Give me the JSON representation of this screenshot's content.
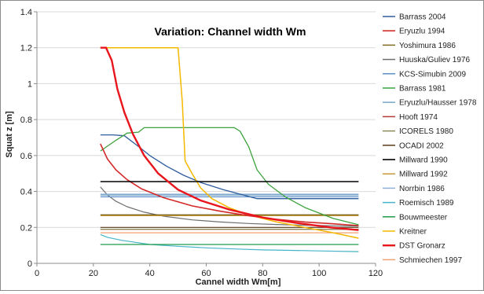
{
  "chart_data": {
    "type": "line",
    "title": "Variation: Channel width Wm",
    "xlabel": "Cannel width Wm[m]",
    "ylabel": "Squat z [m]",
    "xlim": [
      0,
      120
    ],
    "ylim": [
      0,
      1.4
    ],
    "x_ticks": [
      0,
      20,
      40,
      60,
      80,
      100,
      120
    ],
    "y_ticks": [
      0,
      0.2,
      0.4,
      0.6,
      0.8,
      1,
      1.2,
      1.4
    ],
    "x_tick_labels": [
      "0",
      "20",
      "40",
      "60",
      "80",
      "100",
      "120"
    ],
    "y_tick_labels": [
      "0",
      "0.2",
      "0.4",
      "0.6",
      "0.8",
      "1",
      "1.2",
      "1.4"
    ],
    "grid": "horizontal",
    "legend_position": "right",
    "series": [
      {
        "name": "Barrass 2004",
        "color": "#2e5c9e",
        "width": 1.3,
        "points": [
          [
            22.5,
            0.715
          ],
          [
            27,
            0.715
          ],
          [
            31,
            0.71
          ],
          [
            36,
            0.65
          ],
          [
            40,
            0.6
          ],
          [
            46,
            0.54
          ],
          [
            52,
            0.49
          ],
          [
            58,
            0.45
          ],
          [
            66,
            0.41
          ],
          [
            72,
            0.385
          ],
          [
            78,
            0.36
          ],
          [
            90,
            0.36
          ],
          [
            114,
            0.36
          ]
        ]
      },
      {
        "name": "Eryuzlu 1994",
        "color": "#d42a2a",
        "width": 1.6,
        "points": [
          [
            22.5,
            0.665
          ],
          [
            25,
            0.58
          ],
          [
            28,
            0.52
          ],
          [
            32,
            0.465
          ],
          [
            37,
            0.415
          ],
          [
            45,
            0.365
          ],
          [
            55,
            0.32
          ],
          [
            65,
            0.29
          ],
          [
            75,
            0.265
          ],
          [
            85,
            0.245
          ],
          [
            95,
            0.23
          ],
          [
            105,
            0.22
          ],
          [
            114,
            0.21
          ]
        ]
      },
      {
        "name": "Yoshimura 1986",
        "color": "#7f6a1e",
        "width": 1.3,
        "points": [
          [
            22.5,
            0.27
          ],
          [
            114,
            0.27
          ]
        ]
      },
      {
        "name": "Huuska/Guliev 1976",
        "color": "#6e6e6e",
        "width": 1.2,
        "points": [
          [
            22.5,
            0.425
          ],
          [
            25,
            0.38
          ],
          [
            28,
            0.345
          ],
          [
            32,
            0.315
          ],
          [
            38,
            0.285
          ],
          [
            45,
            0.262
          ],
          [
            55,
            0.242
          ],
          [
            65,
            0.23
          ],
          [
            75,
            0.222
          ],
          [
            85,
            0.216
          ],
          [
            95,
            0.212
          ],
          [
            105,
            0.209
          ],
          [
            114,
            0.207
          ]
        ]
      },
      {
        "name": "KCS-Simubin 2009",
        "color": "#5b8fc9",
        "width": 1.2,
        "points": [
          [
            22.5,
            0.37
          ],
          [
            114,
            0.37
          ]
        ]
      },
      {
        "name": "Barrass 1981",
        "color": "#3ea33e",
        "width": 1.3,
        "points": [
          [
            22.5,
            0.625
          ],
          [
            28,
            0.685
          ],
          [
            32,
            0.725
          ],
          [
            36,
            0.73
          ],
          [
            38,
            0.755
          ],
          [
            50,
            0.755
          ],
          [
            60,
            0.755
          ],
          [
            70,
            0.755
          ],
          [
            72,
            0.735
          ],
          [
            75,
            0.65
          ],
          [
            78,
            0.52
          ],
          [
            82,
            0.44
          ],
          [
            88,
            0.37
          ],
          [
            95,
            0.31
          ],
          [
            105,
            0.25
          ],
          [
            114,
            0.215
          ]
        ]
      },
      {
        "name": "Eryuzlu/Hausser 1978",
        "color": "#7aa8c8",
        "width": 1.2,
        "points": [
          [
            22.5,
            0.38
          ],
          [
            114,
            0.38
          ]
        ]
      },
      {
        "name": "Hooft 1974",
        "color": "#b03a3a",
        "width": 1.2,
        "points": [
          [
            22.5,
            0.19
          ],
          [
            114,
            0.19
          ]
        ]
      },
      {
        "name": "ICORELS 1980",
        "color": "#8a8a5a",
        "width": 1.2,
        "points": [
          [
            22.5,
            0.19
          ],
          [
            114,
            0.19
          ]
        ]
      },
      {
        "name": "OCADI 2002",
        "color": "#5a3a1a",
        "width": 1.2,
        "points": [
          [
            22.5,
            0.2
          ],
          [
            114,
            0.2
          ]
        ]
      },
      {
        "name": "Millward 1990",
        "color": "#000000",
        "width": 1.6,
        "points": [
          [
            22.5,
            0.455
          ],
          [
            114,
            0.455
          ]
        ]
      },
      {
        "name": "Millward 1992",
        "color": "#c89a3a",
        "width": 1.2,
        "points": [
          [
            22.5,
            0.265
          ],
          [
            114,
            0.265
          ]
        ]
      },
      {
        "name": "Norrbin 1986",
        "color": "#8fb0d8",
        "width": 1.2,
        "points": [
          [
            22.5,
            0.385
          ],
          [
            114,
            0.385
          ]
        ]
      },
      {
        "name": "Roemisch 1989",
        "color": "#46b4c8",
        "width": 1.2,
        "points": [
          [
            22.5,
            0.16
          ],
          [
            25,
            0.145
          ],
          [
            30,
            0.128
          ],
          [
            40,
            0.105
          ],
          [
            50,
            0.095
          ],
          [
            60,
            0.086
          ],
          [
            70,
            0.08
          ],
          [
            80,
            0.075
          ],
          [
            90,
            0.072
          ],
          [
            100,
            0.069
          ],
          [
            114,
            0.065
          ]
        ]
      },
      {
        "name": "Bouwmeester",
        "color": "#1e9a4a",
        "width": 1.2,
        "points": [
          [
            22.5,
            0.105
          ],
          [
            114,
            0.105
          ]
        ]
      },
      {
        "name": "Kreitner",
        "color": "#f5b800",
        "width": 1.5,
        "points": [
          [
            22.5,
            1.2
          ],
          [
            50,
            1.2
          ],
          [
            51.5,
            0.9
          ],
          [
            52.5,
            0.57
          ],
          [
            55,
            0.5
          ],
          [
            58,
            0.42
          ],
          [
            62,
            0.36
          ],
          [
            68,
            0.31
          ],
          [
            75,
            0.27
          ],
          [
            85,
            0.23
          ],
          [
            95,
            0.2
          ],
          [
            105,
            0.17
          ],
          [
            114,
            0.14
          ]
        ]
      },
      {
        "name": "DST Gronarz",
        "color": "#e8161c",
        "width": 2.4,
        "points": [
          [
            22.5,
            1.2
          ],
          [
            24.5,
            1.2
          ],
          [
            26.5,
            1.13
          ],
          [
            28.5,
            0.97
          ],
          [
            31,
            0.84
          ],
          [
            34,
            0.72
          ],
          [
            38,
            0.6
          ],
          [
            43,
            0.5
          ],
          [
            50,
            0.41
          ],
          [
            58,
            0.35
          ],
          [
            68,
            0.3
          ],
          [
            80,
            0.255
          ],
          [
            92,
            0.225
          ],
          [
            104,
            0.2
          ],
          [
            114,
            0.185
          ]
        ]
      },
      {
        "name": "Schmiechen 1997",
        "color": "#f0a070",
        "width": 1.2,
        "points": [
          [
            22.5,
            0.17
          ],
          [
            114,
            0.17
          ]
        ]
      }
    ]
  }
}
